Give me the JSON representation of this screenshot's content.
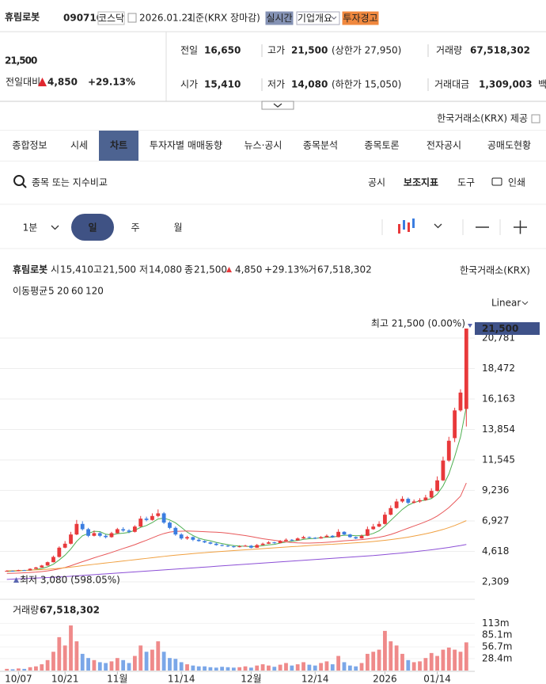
{
  "header": {
    "name": "휴림로봇",
    "code": "090710",
    "market": "코스닥",
    "date": "2026.01.21",
    "basis": "기준(KRX 장마감)",
    "buttons": [
      "실시간",
      "기업개요",
      "투자경고"
    ]
  },
  "quote": {
    "price": "21,500",
    "change_label": "전일대비",
    "change": "4,850",
    "change_pct": "+29.13%",
    "color": "#e0272f"
  },
  "stats": [
    {
      "label": "전일",
      "value": "16,650"
    },
    {
      "label": "고가",
      "value": "21,500",
      "sub": "(상한가 27,950)"
    },
    {
      "label": "거래량",
      "value": "67,518,302"
    },
    {
      "label": "시가",
      "value": "15,410",
      "color": "#2a5bd7"
    },
    {
      "label": "저가",
      "value": "14,080",
      "color": "#2a5bd7",
      "sub": "(하한가 15,050)"
    },
    {
      "label": "거래대금",
      "value": "1,309,003",
      "sub": "백만"
    }
  ],
  "provider": "한국거래소(KRX) 제공",
  "tabs": [
    "종합정보",
    "시세",
    "차트",
    "투자자별 매매동향",
    "뉴스·공시",
    "종목분석",
    "종목토론",
    "전자공시",
    "공매도현황"
  ],
  "active_tab": 2,
  "search_placeholder": "종목 또는 지수비교",
  "tools": [
    "공시",
    "보조지표",
    "도구",
    "인쇄"
  ],
  "periods": [
    "1분",
    "일",
    "주",
    "월"
  ],
  "active_period": 1,
  "chart_data": {
    "type": "candlestick",
    "title": "휴림로봇",
    "source": "한국거래소(KRX)",
    "scale": "Linear",
    "info": [
      {
        "label": "시",
        "value": "15,410"
      },
      {
        "label": "고",
        "value": "21,500"
      },
      {
        "label": "저",
        "value": "14,080"
      },
      {
        "label": "종",
        "value": "21,500"
      }
    ],
    "change": "4,850",
    "change_pct": "+29.13%",
    "volume_info": {
      "label": "거",
      "value": "67,518,302"
    },
    "ma_label": "이동평균",
    "up_color": "#e8393b",
    "down_color": "#3b7de0",
    "categories": [
      null,
      null,
      "10/07",
      null,
      null,
      null,
      null,
      null,
      null,
      null,
      "10/21",
      null,
      null,
      null,
      null,
      null,
      null,
      null,
      null,
      "11월",
      null,
      null,
      null,
      null,
      null,
      null,
      null,
      null,
      null,
      null,
      "11/14",
      null,
      null,
      null,
      null,
      null,
      null,
      null,
      null,
      null,
      null,
      null,
      "12월",
      null,
      null,
      null,
      null,
      null,
      null,
      null,
      null,
      null,
      null,
      "12/14",
      null,
      null,
      null,
      null,
      null,
      null,
      null,
      null,
      null,
      null,
      null,
      "2026",
      null,
      null,
      null,
      null,
      null,
      null,
      null,
      null,
      "01/14",
      null,
      null,
      null,
      null,
      null
    ],
    "candles": [
      [
        3120,
        3190,
        3090,
        3150
      ],
      [
        3150,
        3170,
        3080,
        3120
      ],
      [
        3120,
        3230,
        3110,
        3200
      ],
      [
        3200,
        3220,
        3150,
        3180
      ],
      [
        3180,
        3340,
        3170,
        3300
      ],
      [
        3300,
        3450,
        3280,
        3400
      ],
      [
        3400,
        3600,
        3380,
        3550
      ],
      [
        3550,
        3850,
        3520,
        3800
      ],
      [
        3800,
        4300,
        3780,
        4200
      ],
      [
        4200,
        5000,
        4150,
        4900
      ],
      [
        4900,
        5400,
        4850,
        5200
      ],
      [
        5200,
        6100,
        5150,
        5900
      ],
      [
        5900,
        7000,
        5850,
        6700
      ],
      [
        6700,
        6900,
        6200,
        6300
      ],
      [
        6300,
        6400,
        5700,
        5800
      ],
      [
        5800,
        6200,
        5750,
        6000
      ],
      [
        6000,
        6100,
        5700,
        5800
      ],
      [
        5800,
        5900,
        5600,
        5700
      ],
      [
        5700,
        6100,
        5650,
        6000
      ],
      [
        6000,
        6400,
        5950,
        6300
      ],
      [
        6300,
        6450,
        6100,
        6200
      ],
      [
        6200,
        6300,
        6000,
        6100
      ],
      [
        6100,
        6600,
        6050,
        6500
      ],
      [
        6500,
        7300,
        6450,
        7100
      ],
      [
        7100,
        7250,
        6900,
        7000
      ],
      [
        7000,
        7500,
        6950,
        7300
      ],
      [
        7300,
        7800,
        7200,
        7500
      ],
      [
        7500,
        7600,
        6700,
        6800
      ],
      [
        6800,
        6900,
        6300,
        6400
      ],
      [
        6400,
        6500,
        5800,
        5900
      ],
      [
        5900,
        6000,
        5500,
        5600
      ],
      [
        5600,
        5800,
        5500,
        5700
      ],
      [
        5700,
        5750,
        5400,
        5500
      ],
      [
        5500,
        5600,
        5350,
        5400
      ],
      [
        5400,
        5450,
        5250,
        5300
      ],
      [
        5300,
        5350,
        5150,
        5200
      ],
      [
        5200,
        5300,
        5050,
        5100
      ],
      [
        5100,
        5150,
        5000,
        5050
      ],
      [
        5050,
        5100,
        4950,
        5000
      ],
      [
        5000,
        5050,
        4900,
        4950
      ],
      [
        4950,
        5080,
        4920,
        5000
      ],
      [
        5000,
        5120,
        4980,
        5050
      ],
      [
        5050,
        5100,
        4850,
        4900
      ],
      [
        4900,
        5180,
        4880,
        5100
      ],
      [
        5100,
        5280,
        5080,
        5200
      ],
      [
        5200,
        5400,
        5180,
        5300
      ],
      [
        5300,
        5350,
        5200,
        5250
      ],
      [
        5250,
        5480,
        5230,
        5400
      ],
      [
        5400,
        5600,
        5380,
        5500
      ],
      [
        5500,
        5550,
        5400,
        5450
      ],
      [
        5450,
        5680,
        5430,
        5600
      ],
      [
        5600,
        5800,
        5580,
        5700
      ],
      [
        5700,
        5750,
        5600,
        5650
      ],
      [
        5650,
        5700,
        5550,
        5600
      ],
      [
        5600,
        5780,
        5580,
        5700
      ],
      [
        5700,
        5900,
        5680,
        5800
      ],
      [
        5800,
        5850,
        5650,
        5700
      ],
      [
        5700,
        6300,
        5680,
        6100
      ],
      [
        6100,
        6150,
        5850,
        5900
      ],
      [
        5900,
        5950,
        5650,
        5700
      ],
      [
        5700,
        5750,
        5550,
        5600
      ],
      [
        5600,
        5900,
        5580,
        5800
      ],
      [
        5800,
        6500,
        5780,
        6300
      ],
      [
        6300,
        6700,
        6250,
        6500
      ],
      [
        6500,
        6900,
        6450,
        6700
      ],
      [
        6700,
        7600,
        6650,
        7400
      ],
      [
        7400,
        8100,
        7350,
        7900
      ],
      [
        7900,
        8600,
        7850,
        8400
      ],
      [
        8400,
        8800,
        8300,
        8600
      ],
      [
        8600,
        8700,
        8200,
        8300
      ],
      [
        8300,
        8550,
        8250,
        8400
      ],
      [
        8400,
        8650,
        8300,
        8500
      ],
      [
        8500,
        8900,
        8450,
        8700
      ],
      [
        8700,
        9400,
        8650,
        9200
      ],
      [
        9200,
        10300,
        9150,
        10000
      ],
      [
        10000,
        11800,
        9950,
        11500
      ],
      [
        11500,
        13300,
        11400,
        13000
      ],
      [
        13200,
        15500,
        12900,
        15300
      ],
      [
        15300,
        16900,
        15200,
        16650
      ],
      [
        15410,
        21500,
        14080,
        21500
      ]
    ],
    "ylim": [
      1110,
      22700
    ],
    "yticks": [
      {
        "value": 2309,
        "label": "2,309"
      },
      {
        "value": 4618,
        "label": "4,618"
      },
      {
        "value": 6927,
        "label": "6,927"
      },
      {
        "value": 9236,
        "label": "9,236"
      },
      {
        "value": 11545,
        "label": "11,545"
      },
      {
        "value": 13854,
        "label": "13,854"
      },
      {
        "value": 16163,
        "label": "16,163"
      },
      {
        "value": 18472,
        "label": "18,472"
      },
      {
        "value": 20781,
        "label": "20,781"
      }
    ],
    "grid": true,
    "last_price": {
      "value": 21500,
      "label": "21,500",
      "color": "#3f5289"
    },
    "high_label": "최고 21,500 (0.00%)",
    "low_label": "최저 3,080 (598.05%)",
    "marker_color": "#5a66b0",
    "moving_averages": [
      {
        "name": "5",
        "color": "#4cae4f",
        "values": [
          3100,
          3120,
          3150,
          3170,
          3190,
          3240,
          3330,
          3450,
          3650,
          3970,
          4330,
          4800,
          5380,
          5800,
          5980,
          6140,
          6120,
          5920,
          5860,
          5960,
          6000,
          6060,
          6220,
          6440,
          6580,
          6800,
          7080,
          7140,
          7000,
          6780,
          6440,
          6080,
          5820,
          5620,
          5500,
          5420,
          5300,
          5210,
          5130,
          5060,
          5020,
          5010,
          4980,
          5000,
          5050,
          5110,
          5150,
          5250,
          5330,
          5380,
          5440,
          5530,
          5580,
          5600,
          5650,
          5690,
          5690,
          5780,
          5840,
          5840,
          5800,
          5820,
          5860,
          5980,
          6180,
          6540,
          6960,
          7380,
          7800,
          8120,
          8320,
          8440,
          8500,
          8620,
          8960,
          9580,
          10480,
          11800,
          13290,
          15590
        ]
      },
      {
        "name": "20",
        "color": "#e8585a",
        "values": [
          2950,
          2960,
          2980,
          3000,
          3020,
          3050,
          3090,
          3140,
          3210,
          3300,
          3400,
          3530,
          3690,
          3840,
          3980,
          4130,
          4270,
          4400,
          4540,
          4690,
          4840,
          4980,
          5130,
          5300,
          5460,
          5640,
          5820,
          5970,
          6080,
          6130,
          6150,
          6160,
          6150,
          6130,
          6110,
          6090,
          6070,
          6040,
          6000,
          5940,
          5880,
          5820,
          5740,
          5660,
          5580,
          5520,
          5460,
          5400,
          5340,
          5290,
          5260,
          5250,
          5250,
          5260,
          5280,
          5310,
          5340,
          5380,
          5420,
          5450,
          5480,
          5510,
          5560,
          5620,
          5690,
          5780,
          5900,
          6050,
          6220,
          6380,
          6540,
          6700,
          6870,
          7060,
          7300,
          7600,
          7940,
          8360,
          8800,
          9800
        ]
      },
      {
        "name": "60",
        "color": "#f0a040",
        "values": [
          3150,
          3160,
          3170,
          3180,
          3200,
          3220,
          3240,
          3270,
          3300,
          3340,
          3380,
          3430,
          3480,
          3540,
          3590,
          3640,
          3690,
          3740,
          3790,
          3840,
          3890,
          3940,
          3990,
          4040,
          4090,
          4140,
          4190,
          4240,
          4290,
          4330,
          4370,
          4410,
          4450,
          4490,
          4520,
          4560,
          4590,
          4620,
          4650,
          4680,
          4710,
          4740,
          4770,
          4800,
          4830,
          4860,
          4890,
          4920,
          4950,
          4980,
          5000,
          5030,
          5060,
          5090,
          5110,
          5140,
          5160,
          5190,
          5210,
          5240,
          5270,
          5300,
          5330,
          5370,
          5410,
          5460,
          5510,
          5570,
          5630,
          5700,
          5780,
          5860,
          5950,
          6050,
          6160,
          6280,
          6420,
          6580,
          6760,
          6950
        ]
      },
      {
        "name": "120",
        "color": "#8c4fd6",
        "values": [
          2500,
          2520,
          2540,
          2560,
          2580,
          2600,
          2620,
          2640,
          2660,
          2680,
          2710,
          2740,
          2770,
          2800,
          2830,
          2860,
          2890,
          2920,
          2950,
          2980,
          3010,
          3040,
          3070,
          3100,
          3130,
          3160,
          3190,
          3220,
          3250,
          3280,
          3310,
          3340,
          3370,
          3400,
          3430,
          3460,
          3490,
          3520,
          3550,
          3580,
          3610,
          3640,
          3670,
          3700,
          3730,
          3760,
          3790,
          3820,
          3850,
          3880,
          3910,
          3940,
          3970,
          4000,
          4030,
          4060,
          4090,
          4120,
          4150,
          4180,
          4210,
          4240,
          4270,
          4300,
          4340,
          4380,
          4420,
          4460,
          4500,
          4540,
          4590,
          4640,
          4690,
          4740,
          4800,
          4860,
          4920,
          4990,
          5060,
          5140
        ]
      }
    ],
    "volume": {
      "label": "거래량",
      "value": "67,518,302",
      "up_color": "#ef8a8a",
      "down_color": "#7ba7e8",
      "ylim": [
        0,
        165000000
      ],
      "yticks": [
        {
          "value": 28400000,
          "label": "28.4m"
        },
        {
          "value": 56700000,
          "label": "56.7m"
        },
        {
          "value": 85100000,
          "label": "85.1m"
        },
        {
          "value": 113000000,
          "label": "113m"
        }
      ],
      "values": [
        4000000,
        3000000,
        5000000,
        4000000,
        8000000,
        10000000,
        15000000,
        25000000,
        45000000,
        80000000,
        60000000,
        108000000,
        70000000,
        40000000,
        30000000,
        25000000,
        20000000,
        18000000,
        22000000,
        30000000,
        25000000,
        18000000,
        35000000,
        60000000,
        45000000,
        50000000,
        70000000,
        45000000,
        30000000,
        28000000,
        20000000,
        15000000,
        12000000,
        10000000,
        10000000,
        8000000,
        7000000,
        9000000,
        8000000,
        7000000,
        8000000,
        10000000,
        7000000,
        12000000,
        15000000,
        12000000,
        9000000,
        14000000,
        18000000,
        12000000,
        15000000,
        20000000,
        14000000,
        12000000,
        18000000,
        22000000,
        15000000,
        35000000,
        20000000,
        12000000,
        10000000,
        18000000,
        40000000,
        45000000,
        50000000,
        95000000,
        70000000,
        60000000,
        40000000,
        25000000,
        20000000,
        22000000,
        30000000,
        42000000,
        35000000,
        50000000,
        55000000,
        50000000,
        45000000,
        67518302
      ]
    }
  }
}
